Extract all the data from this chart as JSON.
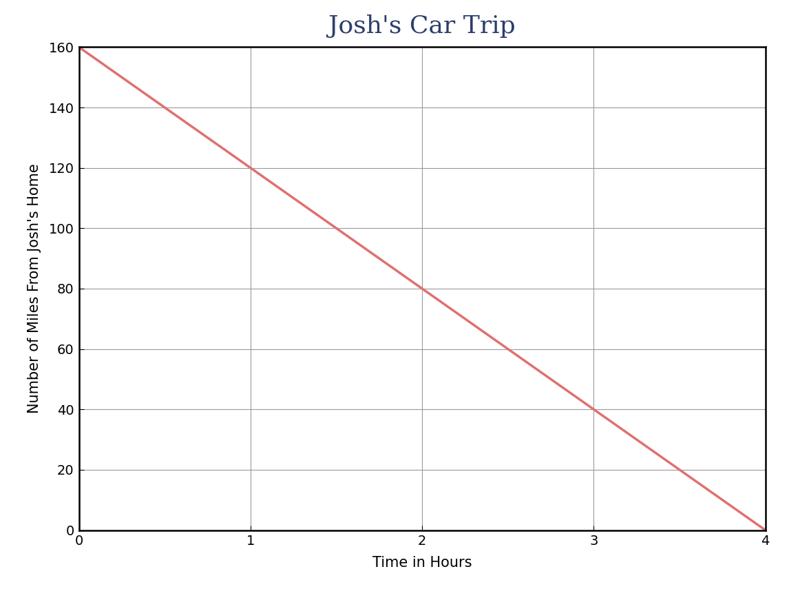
{
  "title": "Josh's Car Trip",
  "xlabel": "Time in Hours",
  "ylabel": "Number of Miles From Josh's Home",
  "x_data": [
    0,
    4
  ],
  "y_data": [
    160,
    0
  ],
  "xlim": [
    0,
    4
  ],
  "ylim": [
    0,
    160
  ],
  "xticks": [
    0,
    1,
    2,
    3,
    4
  ],
  "yticks": [
    0,
    20,
    40,
    60,
    80,
    100,
    120,
    140,
    160
  ],
  "line_color": "#e07070",
  "line_width": 2.5,
  "title_color": "#2c3e6b",
  "title_fontsize": 26,
  "label_fontsize": 15,
  "tick_fontsize": 14,
  "background_color": "#ffffff",
  "grid_color": "#999999",
  "grid_linewidth": 0.8,
  "spine_linewidth": 1.8
}
